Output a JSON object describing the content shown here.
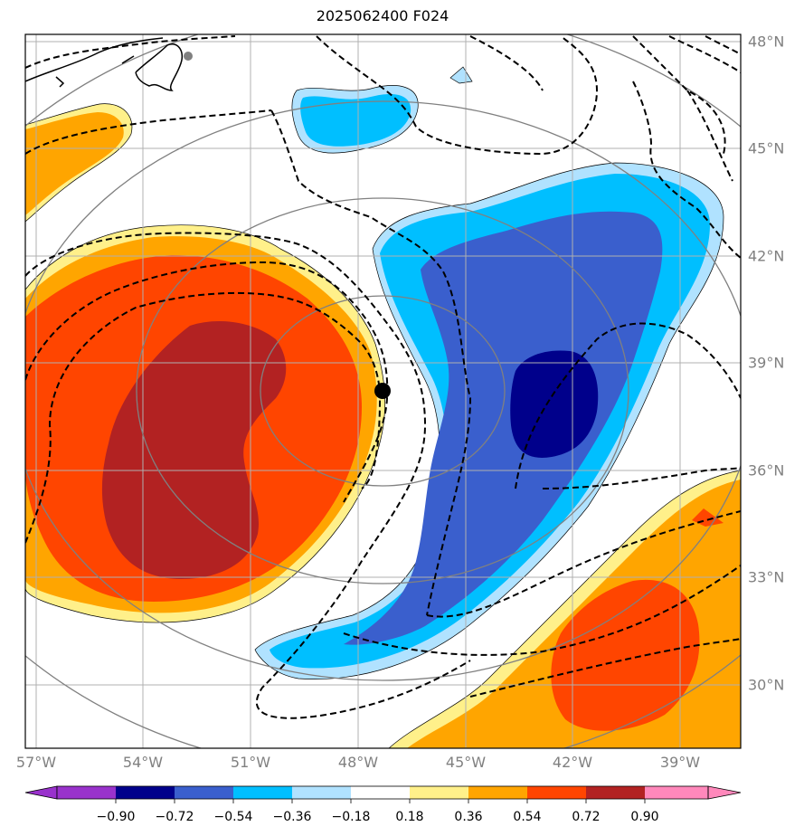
{
  "title": "2025062400 F024",
  "colors": {
    "land_border": "#000000",
    "grid": "#b0b0b0",
    "range_ring": "#808080",
    "contour": "#000000",
    "center_marker": "#000000",
    "coast_dot": "#808080"
  },
  "axes": {
    "lon_labels": [
      "57°W",
      "54°W",
      "51°W",
      "48°W",
      "45°W",
      "42°W",
      "39°W"
    ],
    "lat_labels": [
      "48°N",
      "45°N",
      "42°N",
      "39°N",
      "36°N",
      "33°N",
      "30°N"
    ]
  },
  "colorbar": {
    "levels": [
      "−0.90",
      "−0.72",
      "−0.54",
      "−0.36",
      "−0.18",
      "0.18",
      "0.36",
      "0.54",
      "0.72",
      "0.90"
    ],
    "fill_colors": [
      "#9932cc",
      "#00008b",
      "#3a5fcd",
      "#00bfff",
      "#b0e2ff",
      "#ffffff",
      "#fff08a",
      "#ffa500",
      "#ff4500",
      "#b22222",
      "#ff88bb"
    ]
  }
}
